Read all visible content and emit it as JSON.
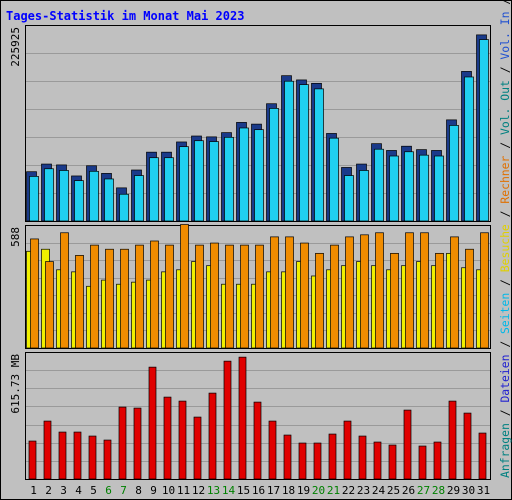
{
  "title": "Tages-Statistik im Monat Mai 2023",
  "colors": {
    "background": "#c0c0c0",
    "title": "#0000ff",
    "anfragen": "#008080",
    "dateien": "#2020d0",
    "seiten": "#00b8e8",
    "besuche": "#f0e000",
    "rechner": "#f08000",
    "vol_in": "#2050d0",
    "vol_out": "#008080",
    "volumen": "#e00000",
    "weekend_label": "#008000",
    "day_label": "#000000"
  },
  "legend_right": [
    {
      "text": "Anfragen",
      "color": "#008080"
    },
    {
      "text": " / ",
      "color": "#000000"
    },
    {
      "text": "Dateien",
      "color": "#2020d0"
    },
    {
      "text": " / ",
      "color": "#000000"
    },
    {
      "text": "Seiten",
      "color": "#00b8e8"
    },
    {
      "text": " / ",
      "color": "#000000"
    },
    {
      "text": "Besuche",
      "color": "#e0d000"
    },
    {
      "text": " / ",
      "color": "#000000"
    },
    {
      "text": "Rechner",
      "color": "#e07000"
    },
    {
      "text": " / ",
      "color": "#000000"
    },
    {
      "text": "Vol. Out",
      "color": "#008080"
    },
    {
      "text": " / ",
      "color": "#000000"
    },
    {
      "text": "Vol. In",
      "color": "#2050d0"
    },
    {
      "text": " / ",
      "color": "#000000"
    },
    {
      "text": "Volumen",
      "color": "#e00000"
    }
  ],
  "chart_data": [
    {
      "type": "bar",
      "panel": "top",
      "ymax_label": "225925",
      "ylim": [
        0,
        225925
      ],
      "categories": [
        "1",
        "2",
        "3",
        "4",
        "5",
        "6",
        "7",
        "8",
        "9",
        "10",
        "11",
        "12",
        "13",
        "14",
        "15",
        "16",
        "17",
        "18",
        "19",
        "20",
        "21",
        "22",
        "23",
        "24",
        "25",
        "26",
        "27",
        "28",
        "29",
        "30",
        "31"
      ],
      "weekend_days": [
        "6",
        "7",
        "13",
        "14",
        "20",
        "21",
        "27",
        "28"
      ],
      "series": [
        {
          "name": "Anfragen",
          "values": [
            58000,
            67000,
            66000,
            53000,
            65000,
            56000,
            39000,
            60000,
            81000,
            81000,
            93000,
            100000,
            99000,
            104000,
            116000,
            114000,
            138000,
            171000,
            166000,
            162000,
            103000,
            63000,
            67000,
            91000,
            83000,
            88000,
            84000,
            83000,
            119000,
            176000,
            219000
          ]
        },
        {
          "name": "Dateien",
          "values": [
            56000,
            65000,
            63000,
            51000,
            62000,
            53000,
            35000,
            57000,
            78000,
            78000,
            91000,
            98000,
            97000,
            102000,
            113000,
            111000,
            136000,
            168000,
            164000,
            159000,
            101000,
            57000,
            63000,
            88000,
            80000,
            85000,
            81000,
            80000,
            116000,
            173000,
            217000
          ]
        },
        {
          "name": "Seiten",
          "values": [
            0,
            0,
            0,
            0,
            0,
            0,
            0,
            0,
            0,
            0,
            0,
            0,
            0,
            0,
            0,
            0,
            0,
            0,
            0,
            0,
            0,
            0,
            0,
            0,
            0,
            0,
            0,
            0,
            0,
            0,
            0
          ]
        }
      ]
    },
    {
      "type": "bar",
      "panel": "middle",
      "ymax_label": "588",
      "ylim": [
        0,
        588
      ],
      "categories": [
        "1",
        "2",
        "3",
        "4",
        "5",
        "6",
        "7",
        "8",
        "9",
        "10",
        "11",
        "12",
        "13",
        "14",
        "15",
        "16",
        "17",
        "18",
        "19",
        "20",
        "21",
        "22",
        "23",
        "24",
        "25",
        "26",
        "27",
        "28",
        "29",
        "30",
        "31"
      ],
      "series": [
        {
          "name": "Besuche",
          "values": [
            470,
            480,
            380,
            370,
            300,
            330,
            310,
            320,
            330,
            370,
            380,
            420,
            400,
            310,
            310,
            310,
            370,
            370,
            420,
            350,
            380,
            400,
            420,
            400,
            380,
            400,
            420,
            400,
            460,
            390,
            380
          ]
        },
        {
          "name": "Rechner",
          "values": [
            530,
            420,
            560,
            450,
            500,
            480,
            480,
            500,
            520,
            500,
            600,
            500,
            510,
            500,
            500,
            500,
            540,
            540,
            510,
            460,
            500,
            540,
            550,
            560,
            460,
            560,
            560,
            460,
            540,
            480,
            560
          ]
        }
      ]
    },
    {
      "type": "bar",
      "panel": "bottom",
      "ymax_label": "615.73 MB",
      "ylim": [
        0,
        615.73
      ],
      "unit": "MB",
      "categories": [
        "1",
        "2",
        "3",
        "4",
        "5",
        "6",
        "7",
        "8",
        "9",
        "10",
        "11",
        "12",
        "13",
        "14",
        "15",
        "16",
        "17",
        "18",
        "19",
        "20",
        "21",
        "22",
        "23",
        "24",
        "25",
        "26",
        "27",
        "28",
        "29",
        "30",
        "31"
      ],
      "series": [
        {
          "name": "Volumen",
          "values": [
            190,
            290,
            235,
            235,
            215,
            195,
            360,
            355,
            560,
            410,
            390,
            310,
            430,
            590,
            610,
            385,
            290,
            220,
            180,
            180,
            225,
            290,
            215,
            185,
            170,
            345,
            165,
            185,
            390,
            330,
            230
          ]
        },
        {
          "name": "Vol. In",
          "values": [
            0,
            0,
            0,
            0,
            0,
            0,
            0,
            0,
            0,
            0,
            0,
            0,
            0,
            0,
            0,
            0,
            0,
            0,
            0,
            0,
            0,
            0,
            0,
            0,
            0,
            0,
            0,
            0,
            0,
            0,
            0
          ]
        },
        {
          "name": "Vol. Out",
          "values": [
            0,
            0,
            0,
            0,
            0,
            0,
            0,
            0,
            0,
            0,
            0,
            0,
            0,
            0,
            0,
            0,
            0,
            0,
            0,
            0,
            0,
            0,
            0,
            0,
            0,
            0,
            0,
            0,
            0,
            0,
            0
          ]
        }
      ]
    }
  ]
}
